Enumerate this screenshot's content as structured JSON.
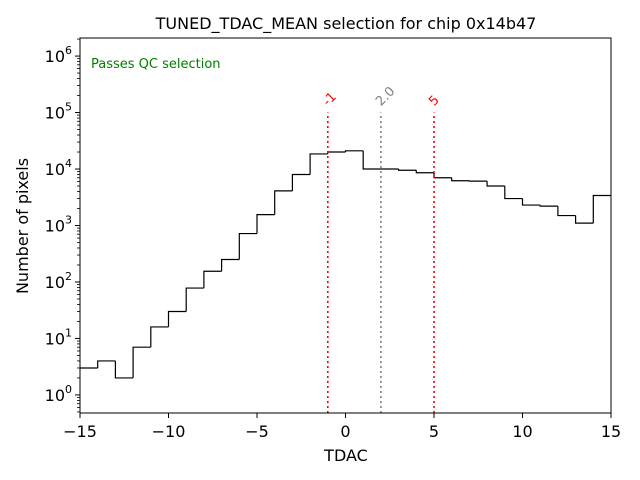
{
  "chart_data": {
    "type": "histogram",
    "title": "TUNED_TDAC_MEAN selection for chip 0x14b47",
    "xlabel": "TDAC",
    "ylabel": "Number of pixels",
    "xlim": [
      -15,
      15
    ],
    "ylim_log10": [
      -0.32,
      6.32
    ],
    "yscale": "log",
    "xticks": [
      -15,
      -10,
      -5,
      0,
      5,
      10,
      15
    ],
    "xtick_labels": [
      "−15",
      "−10",
      "−5",
      "0",
      "5",
      "10",
      "15"
    ],
    "yticks": [
      {
        "base": "10",
        "exp": "0",
        "value": 0
      },
      {
        "base": "10",
        "exp": "1",
        "value": 1
      },
      {
        "base": "10",
        "exp": "2",
        "value": 2
      },
      {
        "base": "10",
        "exp": "3",
        "value": 3
      },
      {
        "base": "10",
        "exp": "4",
        "value": 4
      },
      {
        "base": "10",
        "exp": "5",
        "value": 5
      },
      {
        "base": "10",
        "exp": "6",
        "value": 6
      }
    ],
    "bin_edges": [
      -15,
      -14,
      -13,
      -12,
      -11,
      -10,
      -9,
      -8,
      -7,
      -6,
      -5,
      -4,
      -3,
      -2,
      -1,
      0,
      1,
      2,
      3,
      4,
      5,
      6,
      7,
      8,
      9,
      10,
      11,
      12,
      13,
      14,
      15
    ],
    "counts": [
      3,
      4,
      2,
      7,
      16,
      30,
      78,
      155,
      250,
      720,
      1560,
      4100,
      8000,
      18500,
      20000,
      21000,
      10000,
      10000,
      9500,
      8600,
      7000,
      6200,
      6100,
      5000,
      3000,
      2300,
      2200,
      1500,
      1100,
      3400
    ],
    "annotation": {
      "text": "Passes QC selection",
      "color": "#008000"
    },
    "vlines": [
      {
        "x": -1,
        "label": "-1",
        "color": "#ff0000"
      },
      {
        "x": 2,
        "label": "2.0",
        "color": "#808080"
      },
      {
        "x": 5,
        "label": "5",
        "color": "#ff0000"
      }
    ],
    "vline_top_value": 100000
  }
}
